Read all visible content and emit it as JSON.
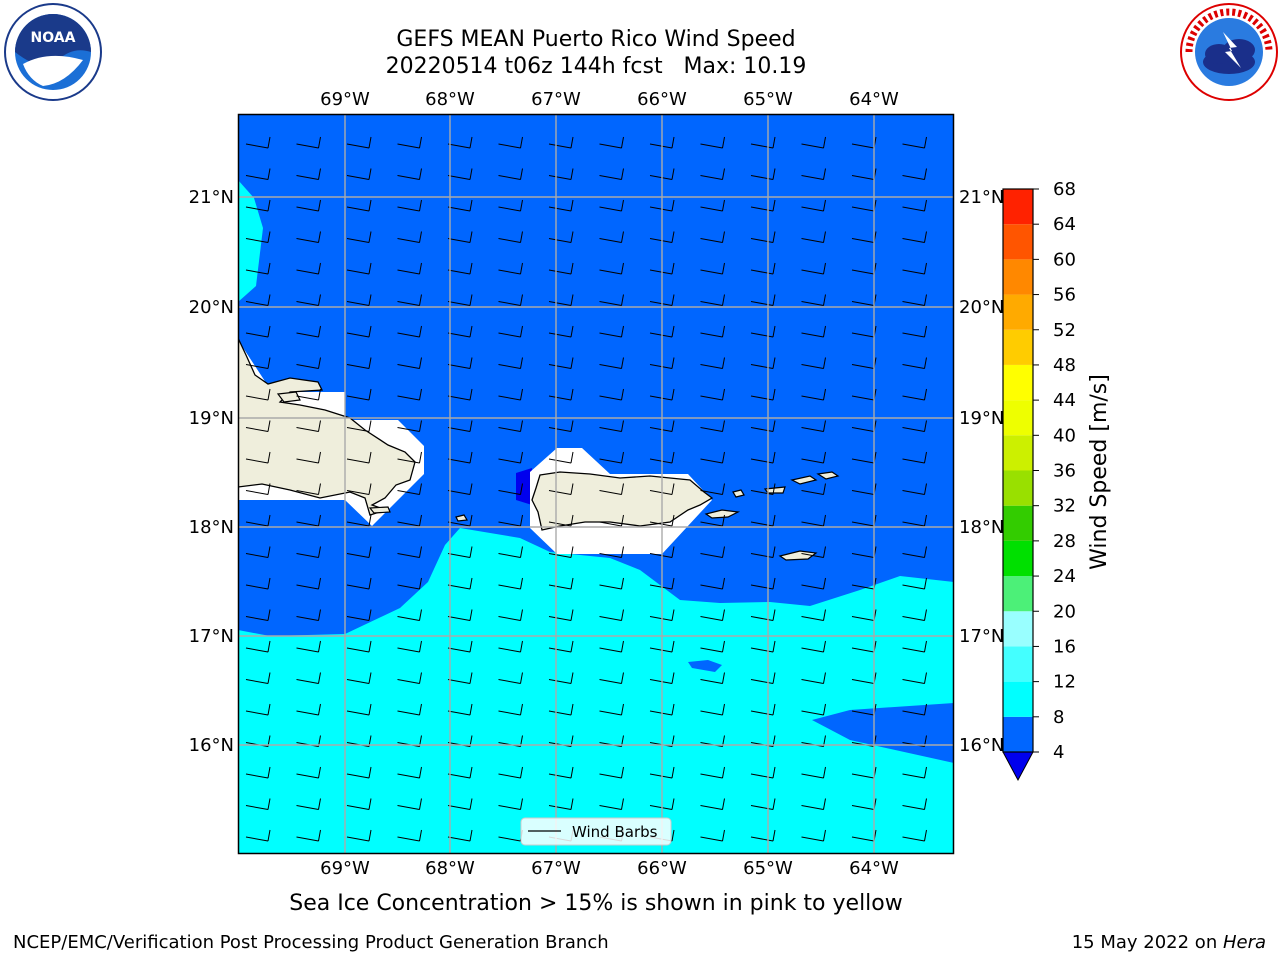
{
  "title_line1": "GEFS MEAN Puerto Rico Wind Speed",
  "title_line2": "20220514 t06z 144h fcst   Max: 10.19",
  "caption": "Sea Ice Concentration > 15% is shown in pink to yellow",
  "footer_left": "NCEP/EMC/Verification Post Processing Product Generation Branch",
  "footer_right_date": "15 May 2022 on ",
  "footer_right_host": "Hera",
  "legend_label": "Wind Barbs",
  "colorbar_label": "Wind Speed [m/s]",
  "colorbar_ticks": [
    "4",
    "8",
    "12",
    "16",
    "20",
    "24",
    "28",
    "32",
    "36",
    "40",
    "44",
    "48",
    "52",
    "56",
    "60",
    "64",
    "68"
  ],
  "colorbar_colors": [
    "#0066ff",
    "#00ffff",
    "#33ffff",
    "#66ffff",
    "#99ffff",
    "#4cf078",
    "#00e000",
    "#33cc00",
    "#66d800",
    "#99e000",
    "#ccf000",
    "#eeff00",
    "#ffff00",
    "#ffd800",
    "#ffbb00",
    "#ff9900",
    "#ff7700",
    "#ff5500",
    "#ff3300",
    "#ff0000"
  ],
  "lon_labels": [
    "69°W",
    "68°W",
    "67°W",
    "66°W",
    "65°W",
    "64°W"
  ],
  "lat_labels": [
    "21°N",
    "20°N",
    "19°N",
    "18°N",
    "17°N",
    "16°N"
  ],
  "logos": {
    "left": "noaa-logo",
    "right": "nws-logo"
  }
}
